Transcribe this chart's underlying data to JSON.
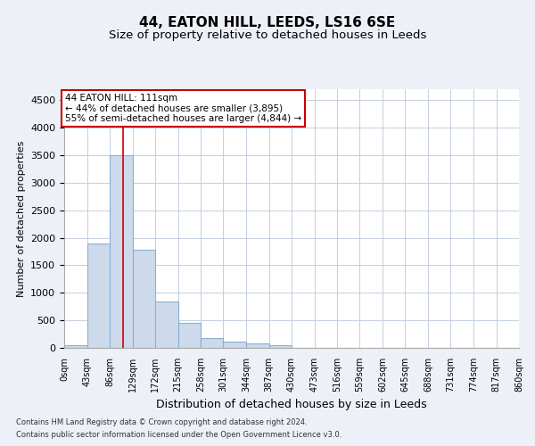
{
  "title1": "44, EATON HILL, LEEDS, LS16 6SE",
  "title2": "Size of property relative to detached houses in Leeds",
  "xlabel": "Distribution of detached houses by size in Leeds",
  "ylabel": "Number of detached properties",
  "bar_values": [
    50,
    1900,
    3500,
    1775,
    840,
    460,
    185,
    110,
    80,
    55,
    0,
    0,
    0,
    0,
    0,
    0,
    0,
    0,
    0,
    0
  ],
  "bin_edges": [
    0,
    43,
    86,
    129,
    172,
    215,
    258,
    301,
    344,
    387,
    430,
    473,
    516,
    559,
    602,
    645,
    688,
    731,
    774,
    817,
    860
  ],
  "tick_labels": [
    "0sqm",
    "43sqm",
    "86sqm",
    "129sqm",
    "172sqm",
    "215sqm",
    "258sqm",
    "301sqm",
    "344sqm",
    "387sqm",
    "430sqm",
    "473sqm",
    "516sqm",
    "559sqm",
    "602sqm",
    "645sqm",
    "688sqm",
    "731sqm",
    "774sqm",
    "817sqm",
    "860sqm"
  ],
  "bar_color": "#ccdaec",
  "bar_edge_color": "#8bafd4",
  "property_size": 111,
  "vline_color": "#cc0000",
  "annotation_line1": "44 EATON HILL: 111sqm",
  "annotation_line2": "← 44% of detached houses are smaller (3,895)",
  "annotation_line3": "55% of semi-detached houses are larger (4,844) →",
  "annotation_box_color": "white",
  "annotation_box_edge": "#cc0000",
  "ylim": [
    0,
    4700
  ],
  "yticks": [
    0,
    500,
    1000,
    1500,
    2000,
    2500,
    3000,
    3500,
    4000,
    4500
  ],
  "bg_color": "#eef0f8",
  "plot_bg_color": "white",
  "grid_color": "#c5cfe0",
  "footer1": "Contains HM Land Registry data © Crown copyright and database right 2024.",
  "footer2": "Contains public sector information licensed under the Open Government Licence v3.0.",
  "title1_fontsize": 11,
  "title2_fontsize": 9.5,
  "tick_fontsize": 7,
  "ylabel_fontsize": 8,
  "xlabel_fontsize": 9,
  "annotation_fontsize": 7.5,
  "footer_fontsize": 6
}
